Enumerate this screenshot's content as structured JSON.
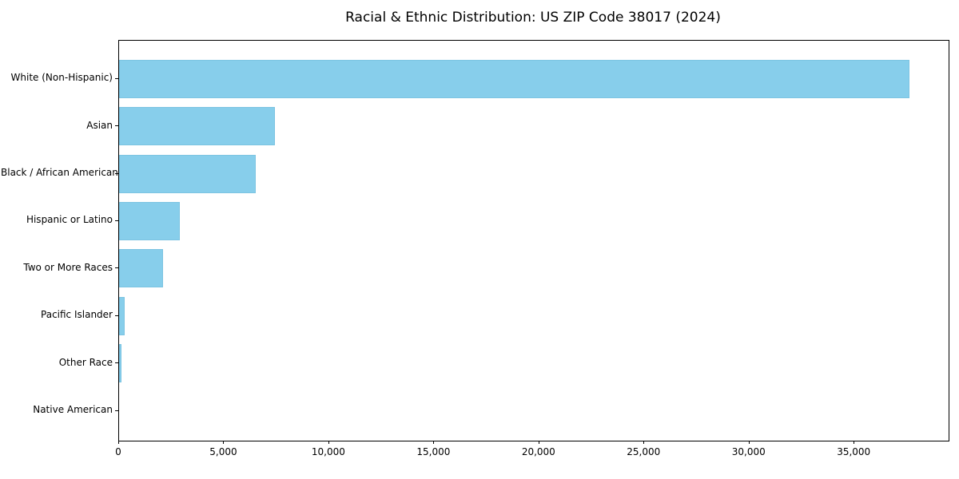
{
  "chart_data": {
    "type": "bar",
    "orientation": "horizontal",
    "title": "Racial & Ethnic Distribution: US ZIP Code 38017 (2024)",
    "categories": [
      "White (Non-Hispanic)",
      "Asian",
      "Black / African American",
      "Hispanic or Latino",
      "Two or More Races",
      "Pacific Islander",
      "Other Race",
      "Native American"
    ],
    "values": [
      37600,
      7400,
      6500,
      2900,
      2100,
      280,
      130,
      0
    ],
    "xlabel": "",
    "ylabel": "",
    "xlim": [
      0,
      39480
    ],
    "x_ticks": [
      0,
      5000,
      10000,
      15000,
      20000,
      25000,
      30000,
      35000
    ],
    "x_tick_labels": [
      "0",
      "5,000",
      "10,000",
      "15,000",
      "20,000",
      "25,000",
      "30,000",
      "35,000"
    ],
    "bar_color": "#87CEEB",
    "bar_edge_color": "#7cc4e2",
    "axis_color": "#000000",
    "background_color": "#ffffff",
    "grid": false,
    "legend": null
  }
}
